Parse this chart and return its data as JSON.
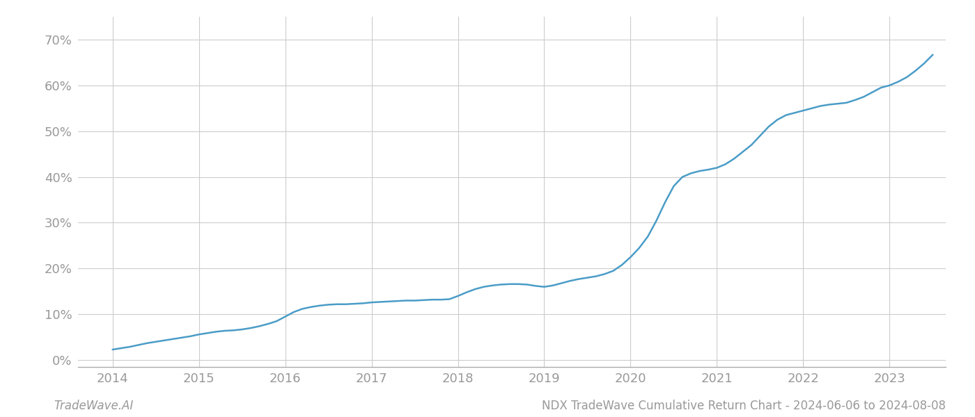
{
  "title": "NDX TradeWave Cumulative Return Chart - 2024-06-06 to 2024-08-08",
  "watermark": "TradeWave.AI",
  "line_color": "#4a9cc7",
  "line_width": 1.8,
  "background_color": "#ffffff",
  "grid_color": "#cccccc",
  "x_values": [
    2014.0,
    2014.1,
    2014.2,
    2014.3,
    2014.4,
    2014.5,
    2014.6,
    2014.7,
    2014.8,
    2014.9,
    2015.0,
    2015.1,
    2015.2,
    2015.3,
    2015.4,
    2015.5,
    2015.6,
    2015.7,
    2015.8,
    2015.9,
    2016.0,
    2016.1,
    2016.2,
    2016.3,
    2016.4,
    2016.5,
    2016.6,
    2016.7,
    2016.8,
    2016.9,
    2017.0,
    2017.1,
    2017.2,
    2017.3,
    2017.4,
    2017.5,
    2017.6,
    2017.7,
    2017.8,
    2017.9,
    2018.0,
    2018.1,
    2018.2,
    2018.3,
    2018.4,
    2018.5,
    2018.6,
    2018.7,
    2018.8,
    2018.9,
    2019.0,
    2019.1,
    2019.2,
    2019.3,
    2019.4,
    2019.5,
    2019.6,
    2019.7,
    2019.8,
    2019.9,
    2020.0,
    2020.1,
    2020.2,
    2020.3,
    2020.4,
    2020.5,
    2020.6,
    2020.7,
    2020.8,
    2020.9,
    2021.0,
    2021.1,
    2021.2,
    2021.3,
    2021.4,
    2021.5,
    2021.6,
    2021.7,
    2021.8,
    2021.9,
    2022.0,
    2022.1,
    2022.2,
    2022.3,
    2022.4,
    2022.5,
    2022.6,
    2022.7,
    2022.8,
    2022.9,
    2023.0,
    2023.1,
    2023.2,
    2023.3,
    2023.4,
    2023.5
  ],
  "y_values": [
    0.023,
    0.026,
    0.029,
    0.033,
    0.037,
    0.04,
    0.043,
    0.046,
    0.049,
    0.052,
    0.056,
    0.059,
    0.062,
    0.064,
    0.065,
    0.067,
    0.07,
    0.074,
    0.079,
    0.085,
    0.095,
    0.105,
    0.112,
    0.116,
    0.119,
    0.121,
    0.122,
    0.122,
    0.123,
    0.124,
    0.126,
    0.127,
    0.128,
    0.129,
    0.13,
    0.13,
    0.131,
    0.132,
    0.132,
    0.133,
    0.14,
    0.148,
    0.155,
    0.16,
    0.163,
    0.165,
    0.166,
    0.166,
    0.165,
    0.162,
    0.16,
    0.163,
    0.168,
    0.173,
    0.177,
    0.18,
    0.183,
    0.188,
    0.195,
    0.208,
    0.225,
    0.245,
    0.27,
    0.305,
    0.345,
    0.38,
    0.4,
    0.408,
    0.413,
    0.416,
    0.42,
    0.428,
    0.44,
    0.455,
    0.47,
    0.49,
    0.51,
    0.525,
    0.535,
    0.54,
    0.545,
    0.55,
    0.555,
    0.558,
    0.56,
    0.562,
    0.568,
    0.575,
    0.585,
    0.595,
    0.6,
    0.608,
    0.618,
    0.632,
    0.648,
    0.667
  ],
  "xlim": [
    2013.6,
    2023.65
  ],
  "ylim": [
    -0.015,
    0.75
  ],
  "yticks": [
    0.0,
    0.1,
    0.2,
    0.3,
    0.4,
    0.5,
    0.6,
    0.7
  ],
  "ytick_labels": [
    "0%",
    "10%",
    "20%",
    "30%",
    "40%",
    "50%",
    "60%",
    "70%"
  ],
  "xticks": [
    2014,
    2015,
    2016,
    2017,
    2018,
    2019,
    2020,
    2021,
    2022,
    2023
  ],
  "tick_label_color": "#999999",
  "tick_fontsize": 13,
  "title_fontsize": 12,
  "watermark_fontsize": 12
}
